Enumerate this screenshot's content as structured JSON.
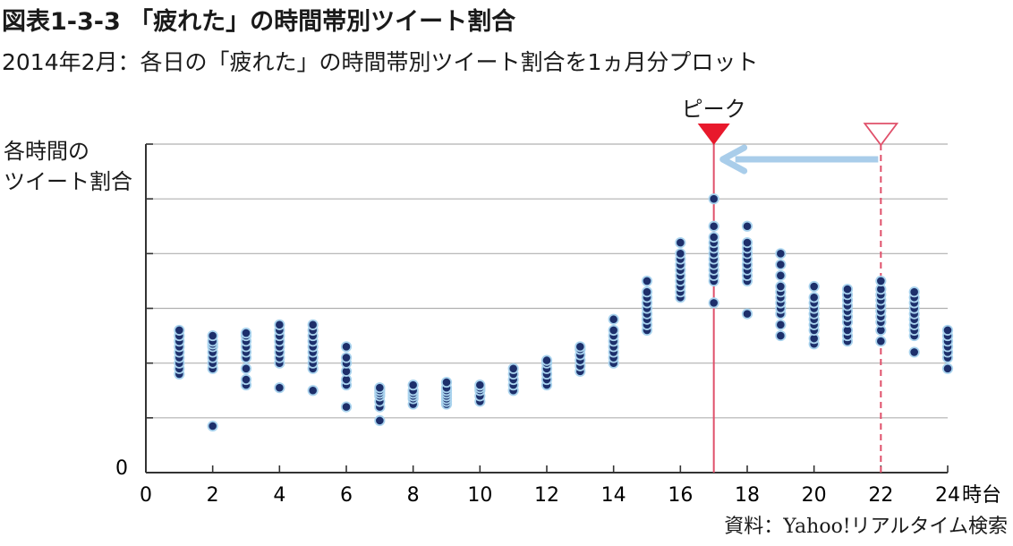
{
  "header": {
    "title": "図表1-3-3 「疲れた」の時間帯別ツイート割合",
    "subtitle": "2014年2月：各日の「疲れた」の時間帯別ツイート割合を1ヵ月分プロット"
  },
  "source": "資料：Yahoo!リアルタイム検索",
  "colors": {
    "dot": "#1d2f6b",
    "dot_halo": "#a9d3ee",
    "grid": "#b0b0b0",
    "peak_line": "#e0506a",
    "peak_marker": "#e8192c",
    "arrow": "#a9cdea"
  },
  "chart_data": {
    "type": "scatter",
    "title": "図表1-3-3 「疲れた」の時間帯別ツイート割合",
    "ylabel_lines": [
      "各時間の",
      "ツイート割合"
    ],
    "xlabel": "時台",
    "xlim": [
      0,
      24
    ],
    "ylim": [
      0,
      6
    ],
    "x_ticks": [
      "0",
      "2",
      "4",
      "6",
      "8",
      "10",
      "12",
      "14",
      "16",
      "18",
      "20",
      "22",
      "24"
    ],
    "y_tick_labels": [
      "0"
    ],
    "grid": true,
    "annotations": {
      "peak_label": "ピーク",
      "peak_hour": 17,
      "reference_hour": 22,
      "arrow_from_hour": 22,
      "arrow_to_hour": 17
    },
    "series": [
      {
        "x": 1,
        "values": [
          1.8,
          1.9,
          2.0,
          2.1,
          2.2,
          2.3,
          2.4,
          2.5,
          2.6
        ]
      },
      {
        "x": 2,
        "values": [
          0.85,
          1.9,
          2.0,
          2.1,
          2.2,
          2.3,
          2.35,
          2.4,
          2.5
        ]
      },
      {
        "x": 3,
        "values": [
          1.6,
          1.7,
          1.9,
          2.1,
          2.2,
          2.3,
          2.4,
          2.5,
          2.55
        ]
      },
      {
        "x": 4,
        "values": [
          1.55,
          2.0,
          2.1,
          2.2,
          2.3,
          2.4,
          2.5,
          2.6,
          2.7
        ]
      },
      {
        "x": 5,
        "values": [
          1.5,
          1.9,
          2.0,
          2.1,
          2.2,
          2.3,
          2.4,
          2.5,
          2.6,
          2.7
        ]
      },
      {
        "x": 6,
        "values": [
          1.2,
          1.6,
          1.7,
          1.85,
          2.0,
          2.1,
          2.3
        ]
      },
      {
        "x": 7,
        "values": [
          0.95,
          1.2,
          1.3,
          1.4,
          1.45,
          1.5,
          1.55
        ]
      },
      {
        "x": 8,
        "values": [
          1.25,
          1.35,
          1.4,
          1.45,
          1.5,
          1.6
        ]
      },
      {
        "x": 9,
        "values": [
          1.25,
          1.3,
          1.35,
          1.4,
          1.45,
          1.5,
          1.55,
          1.65
        ]
      },
      {
        "x": 10,
        "values": [
          1.3,
          1.4,
          1.5,
          1.55,
          1.6
        ]
      },
      {
        "x": 11,
        "values": [
          1.5,
          1.6,
          1.7,
          1.8,
          1.9
        ]
      },
      {
        "x": 12,
        "values": [
          1.6,
          1.7,
          1.8,
          1.9,
          2.0,
          2.05
        ]
      },
      {
        "x": 13,
        "values": [
          1.85,
          1.95,
          2.05,
          2.15,
          2.25,
          2.3
        ]
      },
      {
        "x": 14,
        "values": [
          2.0,
          2.1,
          2.2,
          2.3,
          2.4,
          2.5,
          2.6,
          2.8
        ]
      },
      {
        "x": 15,
        "values": [
          2.6,
          2.7,
          2.8,
          2.9,
          3.0,
          3.1,
          3.2,
          3.3,
          3.5
        ]
      },
      {
        "x": 16,
        "values": [
          3.2,
          3.3,
          3.4,
          3.5,
          3.6,
          3.7,
          3.8,
          3.9,
          4.0,
          4.2
        ]
      },
      {
        "x": 17,
        "values": [
          3.1,
          3.5,
          3.6,
          3.7,
          3.8,
          3.9,
          4.0,
          4.1,
          4.2,
          4.3,
          4.5,
          5.0
        ]
      },
      {
        "x": 18,
        "values": [
          2.9,
          3.5,
          3.6,
          3.7,
          3.8,
          3.9,
          4.0,
          4.1,
          4.2,
          4.5
        ]
      },
      {
        "x": 19,
        "values": [
          2.5,
          2.7,
          2.9,
          3.0,
          3.1,
          3.2,
          3.3,
          3.4,
          3.6,
          3.8,
          4.0
        ]
      },
      {
        "x": 20,
        "values": [
          2.35,
          2.45,
          2.6,
          2.7,
          2.8,
          2.9,
          3.0,
          3.1,
          3.2,
          3.4
        ]
      },
      {
        "x": 21,
        "values": [
          2.4,
          2.5,
          2.6,
          2.75,
          2.85,
          2.95,
          3.05,
          3.15,
          3.25,
          3.35
        ]
      },
      {
        "x": 22,
        "values": [
          2.4,
          2.6,
          2.75,
          2.85,
          2.95,
          3.05,
          3.15,
          3.25,
          3.35,
          3.5
        ]
      },
      {
        "x": 23,
        "values": [
          2.2,
          2.5,
          2.6,
          2.7,
          2.8,
          2.9,
          3.0,
          3.1,
          3.2,
          3.3
        ]
      },
      {
        "x": 24,
        "values": [
          1.9,
          2.1,
          2.2,
          2.3,
          2.4,
          2.5,
          2.6
        ]
      }
    ]
  }
}
